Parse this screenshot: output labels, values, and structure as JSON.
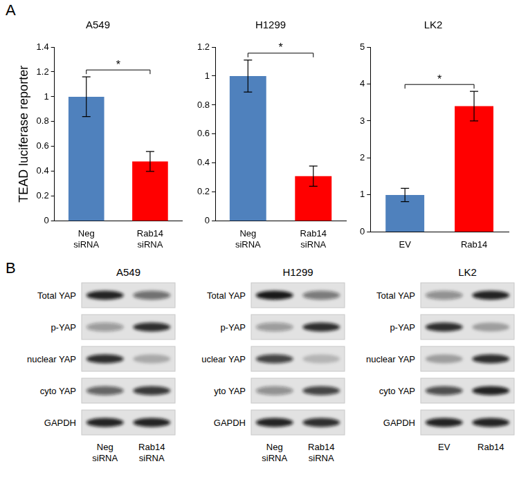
{
  "panel_labels": [
    "A",
    "B"
  ],
  "chart_data": [
    {
      "type": "bar",
      "title": "A549",
      "ylabel": "TEAD luciferase reporter",
      "categories": [
        "Neg siRNA",
        "Rab14 siRNA"
      ],
      "values": [
        1.0,
        0.48
      ],
      "errors": [
        0.16,
        0.08
      ],
      "colors": [
        "#4f81bd",
        "#ff0000"
      ],
      "ylim": [
        0,
        1.4
      ],
      "yticks": [
        0,
        0.2,
        0.4,
        0.6,
        0.8,
        1,
        1.2,
        1.4
      ],
      "grid": false,
      "annotations": [
        {
          "between": [
            0,
            1
          ],
          "text": "*"
        }
      ]
    },
    {
      "type": "bar",
      "title": "H1299",
      "categories": [
        "Neg siRNA",
        "Rab14 siRNA"
      ],
      "values": [
        1.0,
        0.31
      ],
      "errors": [
        0.11,
        0.07
      ],
      "colors": [
        "#4f81bd",
        "#ff0000"
      ],
      "ylim": [
        0,
        1.2
      ],
      "yticks": [
        0,
        0.2,
        0.4,
        0.6,
        0.8,
        1,
        1.2
      ],
      "grid": false,
      "annotations": [
        {
          "between": [
            0,
            1
          ],
          "text": "*"
        }
      ]
    },
    {
      "type": "bar",
      "title": "LK2",
      "categories": [
        "EV",
        "Rab14"
      ],
      "values": [
        1.0,
        3.4
      ],
      "errors": [
        0.18,
        0.4
      ],
      "colors": [
        "#4f81bd",
        "#ff0000"
      ],
      "ylim": [
        0,
        5
      ],
      "yticks": [
        0,
        1,
        2,
        3,
        4,
        5
      ],
      "grid": false,
      "annotations": [
        {
          "between": [
            0,
            1
          ],
          "text": "*"
        }
      ]
    }
  ],
  "blots": [
    {
      "title": "A549",
      "lanes": [
        "Neg siRNA",
        "Rab14 siRNA"
      ],
      "rows": [
        {
          "label": "Total YAP",
          "intensity": [
            0.9,
            0.55
          ]
        },
        {
          "label": "p-YAP",
          "intensity": [
            0.35,
            0.85
          ]
        },
        {
          "label": "nuclear YAP",
          "intensity": [
            0.85,
            0.25
          ]
        },
        {
          "label": "cyto YAP",
          "intensity": [
            0.6,
            0.8
          ]
        },
        {
          "label": "GAPDH",
          "intensity": [
            0.9,
            0.9
          ]
        }
      ]
    },
    {
      "title": "H1299",
      "lanes": [
        "Neg siRNA",
        "Rab14 siRNA"
      ],
      "rows": [
        {
          "label": "Total YAP",
          "intensity": [
            0.95,
            0.5
          ]
        },
        {
          "label": "p-YAP",
          "intensity": [
            0.35,
            0.85
          ]
        },
        {
          "label": "uclear YAP",
          "intensity": [
            0.75,
            0.2
          ]
        },
        {
          "label": "yto YAP",
          "intensity": [
            0.4,
            0.75
          ]
        },
        {
          "label": "GAPDH",
          "intensity": [
            0.9,
            0.85
          ]
        }
      ]
    },
    {
      "title": "LK2",
      "lanes": [
        "EV",
        "Rab14"
      ],
      "rows": [
        {
          "label": "Total YAP",
          "intensity": [
            0.4,
            0.9
          ]
        },
        {
          "label": "p-YAP",
          "intensity": [
            0.85,
            0.3
          ]
        },
        {
          "label": "nuclear YAP",
          "intensity": [
            0.3,
            0.85
          ]
        },
        {
          "label": "cyto YAP",
          "intensity": [
            0.7,
            0.9
          ]
        },
        {
          "label": "GAPDH",
          "intensity": [
            0.9,
            0.9
          ]
        }
      ]
    }
  ]
}
